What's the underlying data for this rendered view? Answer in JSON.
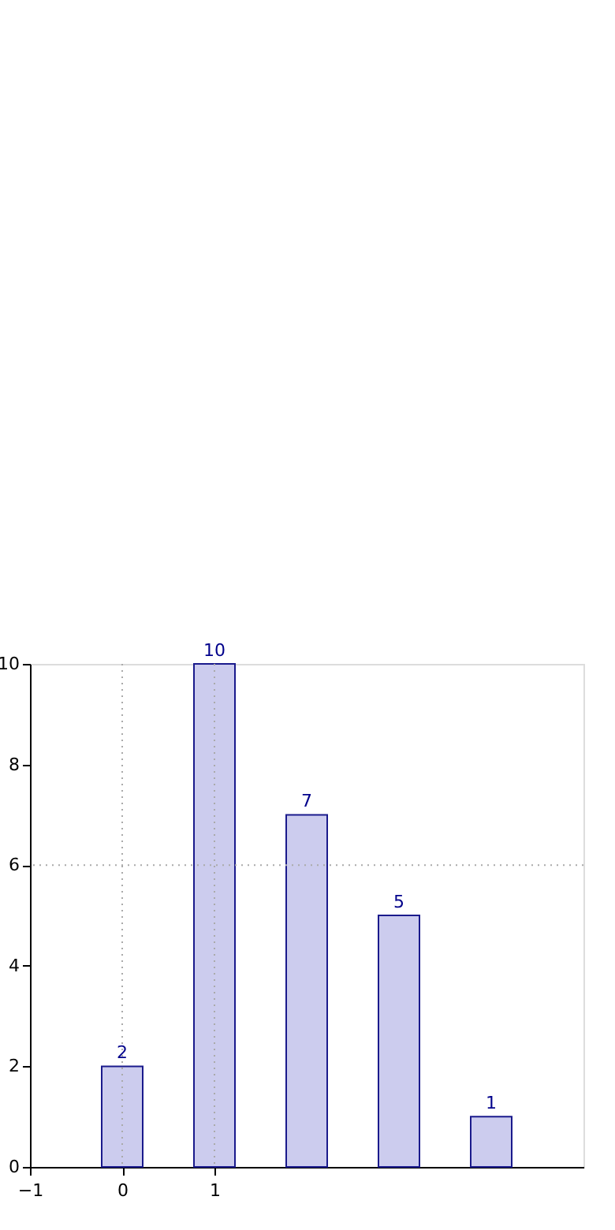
{
  "chart_data": {
    "type": "bar",
    "x": [
      0,
      1,
      2,
      3,
      4
    ],
    "values": [
      2,
      10,
      7,
      5,
      1
    ],
    "color": "#ccccee",
    "xlim": [
      -1,
      5
    ],
    "xticks": [
      -1,
      0,
      1
    ],
    "ylim": [
      0,
      10
    ],
    "yticks": [
      0,
      2,
      4,
      6,
      8,
      10
    ],
    "data_labels": true,
    "ref_lines": [
      {
        "axis": "x",
        "value": 0,
        "line_style": "dotted"
      },
      {
        "axis": "x",
        "value": 1,
        "line_style": "dotted"
      },
      {
        "axis": "y",
        "value": 6,
        "line_style": "dotted"
      }
    ]
  }
}
